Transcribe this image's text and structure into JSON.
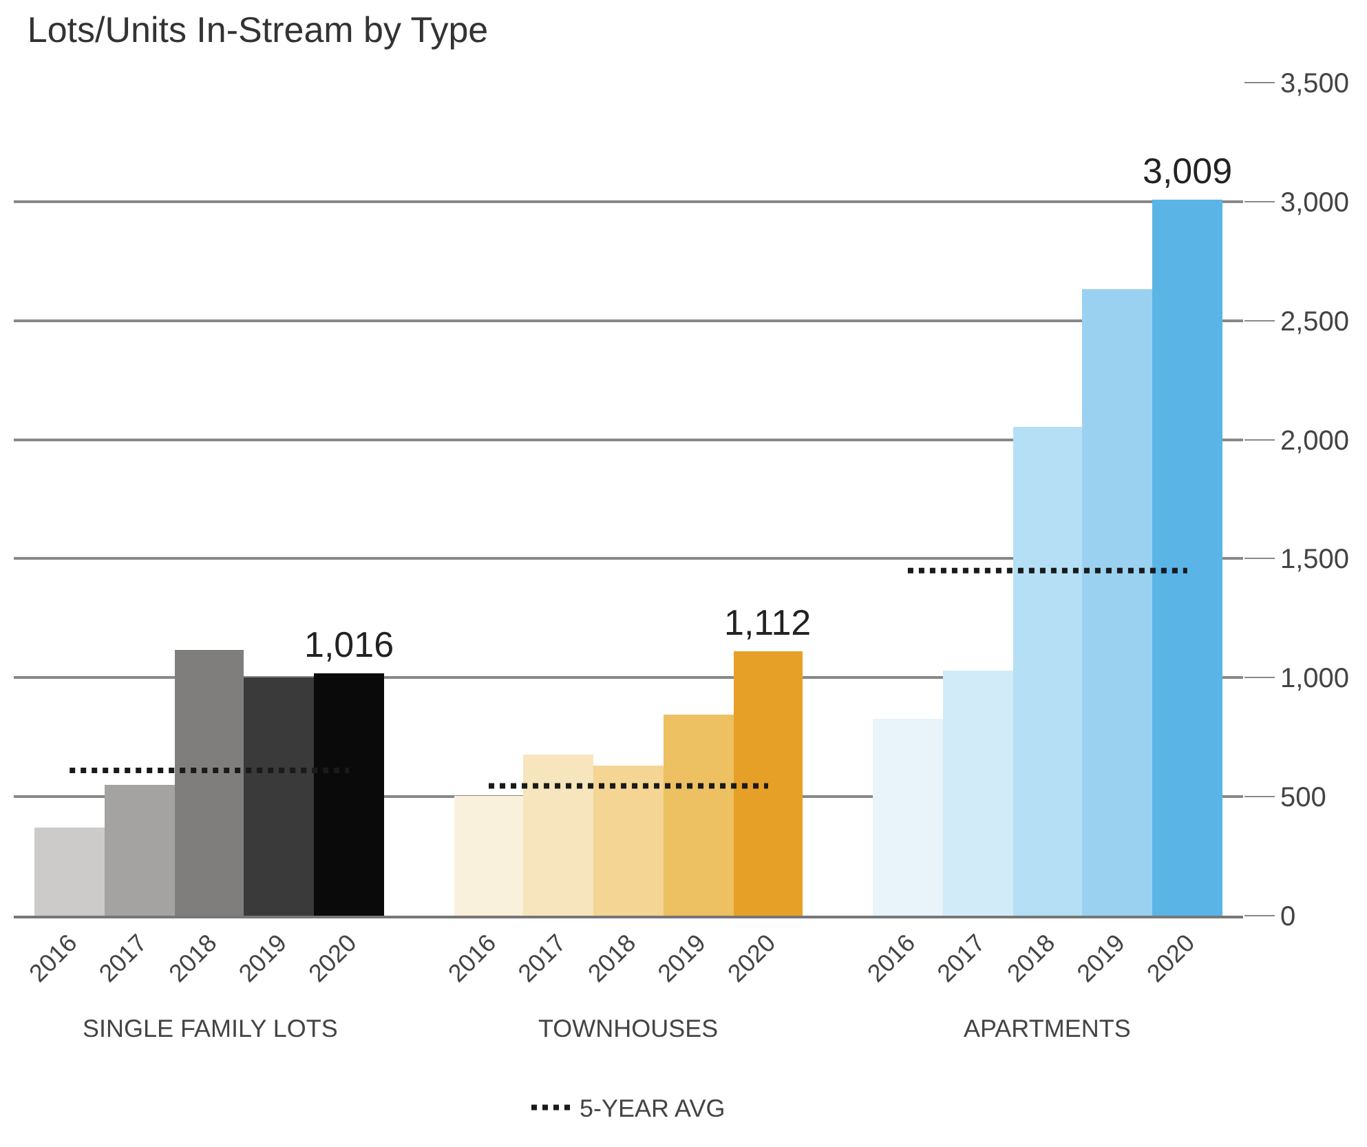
{
  "chart_data": {
    "type": "bar",
    "title": "Lots/Units In-Stream by Type",
    "categories": [
      "2016",
      "2017",
      "2018",
      "2019",
      "2020",
      null,
      "2016",
      "2017",
      "2018",
      "2019",
      "2020",
      null,
      "2016",
      "2017",
      "2018",
      "2019",
      "2020"
    ],
    "series": [
      {
        "colors": [
          "#cccbca",
          "#a4a3a2",
          "#7f7e7d",
          "#3b3a3a",
          "#0a0a0a",
          null,
          null,
          null,
          null,
          null,
          null,
          null,
          null,
          null,
          null,
          null,
          null
        ],
        "values": [
          370,
          550,
          1115,
          1000,
          1016,
          null,
          null,
          null,
          null,
          null,
          null,
          null,
          null,
          null,
          null,
          null,
          null
        ],
        "value_labels": [
          null,
          null,
          null,
          null,
          "1,016",
          null,
          null,
          null,
          null,
          null,
          null,
          null,
          null,
          null,
          null,
          null,
          null
        ]
      },
      {
        "colors": [
          null,
          null,
          null,
          null,
          null,
          null,
          "#faf1dc",
          "#f6e5bd",
          "#f4d593",
          "#edc062",
          "#e6a028",
          null,
          null,
          null,
          null,
          null,
          null
        ],
        "values": [
          null,
          null,
          null,
          null,
          null,
          null,
          505,
          675,
          630,
          845,
          1112,
          null,
          null,
          null,
          null,
          null,
          null
        ],
        "value_labels": [
          null,
          null,
          null,
          null,
          null,
          null,
          null,
          null,
          null,
          null,
          "1,112",
          null,
          null,
          null,
          null,
          null,
          null
        ]
      },
      {
        "colors": [
          null,
          null,
          null,
          null,
          null,
          null,
          null,
          null,
          null,
          null,
          null,
          null,
          "#e8f3fa",
          "#d2ebf8",
          "#b5dff5",
          "#9bd1f0",
          "#5ab4e6"
        ],
        "values": [
          null,
          null,
          null,
          null,
          null,
          null,
          null,
          null,
          null,
          null,
          null,
          null,
          825,
          1030,
          2055,
          2635,
          3009
        ],
        "value_labels": [
          null,
          null,
          null,
          null,
          null,
          null,
          null,
          null,
          null,
          null,
          null,
          null,
          null,
          null,
          null,
          null,
          "3,009"
        ]
      },
      {
        "name": "5-YEAR AVG",
        "type": "line",
        "color": "#1a1a1a",
        "line_style": "dotted",
        "marker": "none",
        "values": [
          610,
          610,
          610,
          610,
          610,
          null,
          545,
          545,
          545,
          545,
          545,
          null,
          1450,
          1450,
          1450,
          1450,
          1450
        ]
      }
    ],
    "ylim": [
      0,
      3500
    ],
    "yticks": [
      {
        "value": 0,
        "label": "0"
      },
      {
        "value": 500,
        "label": "500"
      },
      {
        "value": 1000,
        "label": "1,000"
      },
      {
        "value": 1500,
        "label": "1,500"
      },
      {
        "value": 2000,
        "label": "2,000"
      },
      {
        "value": 2500,
        "label": "2,500"
      },
      {
        "value": 3000,
        "label": "3,000"
      },
      {
        "value": 3500,
        "label": "3,500"
      }
    ],
    "grid": "y",
    "legend": "bottom",
    "annotations": [
      "SINGLE FAMILY LOTS",
      "TOWNHOUSES",
      "APARTMENTS"
    ]
  }
}
